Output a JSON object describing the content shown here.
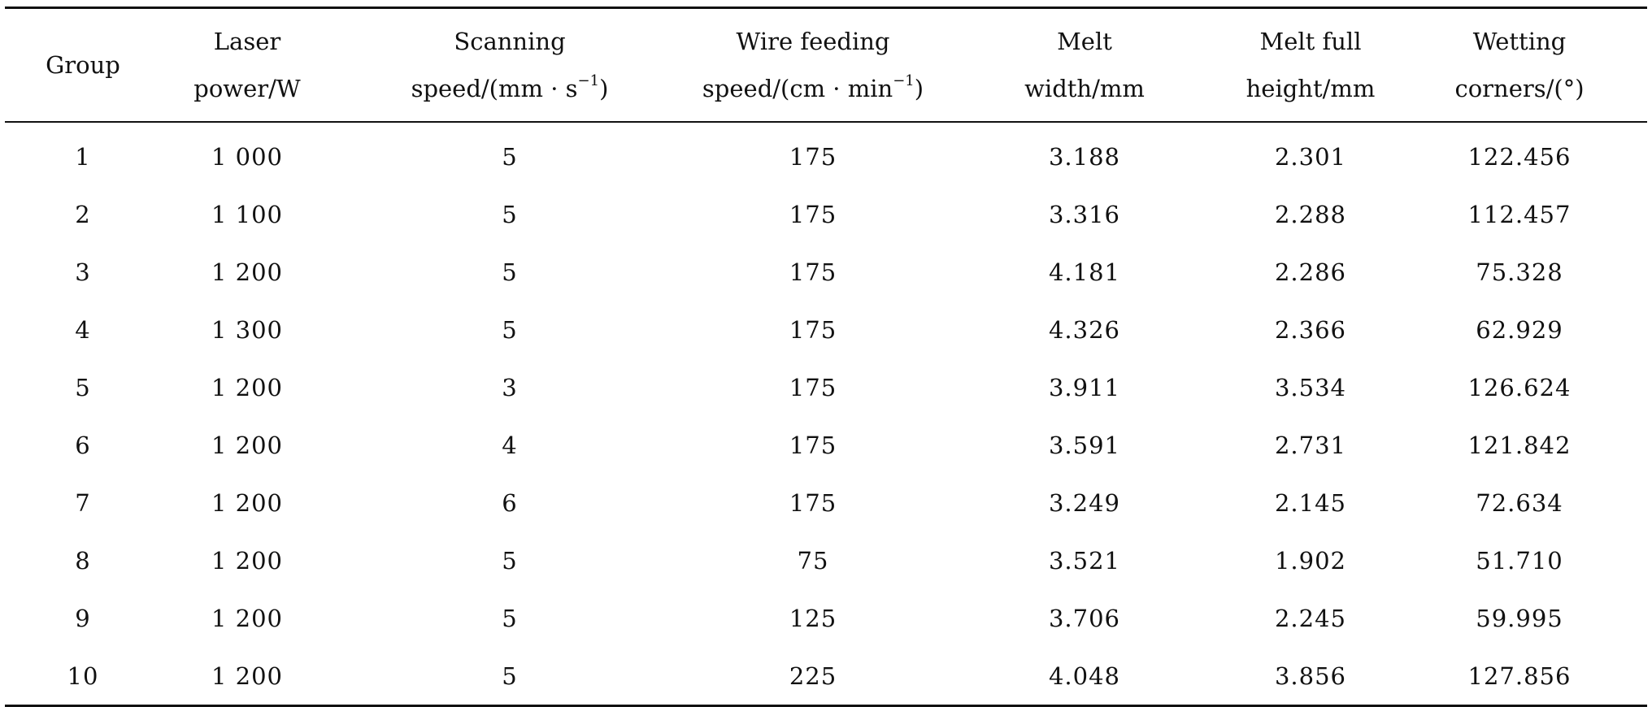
{
  "table": {
    "headers": [
      {
        "line1": "Group",
        "line2": ""
      },
      {
        "line1": "Laser",
        "line2": "power/W"
      },
      {
        "line1": "Scanning",
        "line2": "speed/(mm · s",
        "sup": "−1",
        "tail": ")"
      },
      {
        "line1": "Wire feeding",
        "line2": "speed/(cm · min",
        "sup": "−1",
        "tail": ")"
      },
      {
        "line1": "Melt",
        "line2": "width/mm"
      },
      {
        "line1": "Melt full",
        "line2": "height/mm"
      },
      {
        "line1": "Wetting",
        "line2": "corners/(°)"
      }
    ],
    "rows": [
      [
        "1",
        "1 000",
        "5",
        "175",
        "3.188",
        "2.301",
        "122.456"
      ],
      [
        "2",
        "1 100",
        "5",
        "175",
        "3.316",
        "2.288",
        "112.457"
      ],
      [
        "3",
        "1 200",
        "5",
        "175",
        "4.181",
        "2.286",
        "75.328"
      ],
      [
        "4",
        "1 300",
        "5",
        "175",
        "4.326",
        "2.366",
        "62.929"
      ],
      [
        "5",
        "1 200",
        "3",
        "175",
        "3.911",
        "3.534",
        "126.624"
      ],
      [
        "6",
        "1 200",
        "4",
        "175",
        "3.591",
        "2.731",
        "121.842"
      ],
      [
        "7",
        "1 200",
        "6",
        "175",
        "3.249",
        "2.145",
        "72.634"
      ],
      [
        "8",
        "1 200",
        "5",
        "75",
        "3.521",
        "1.902",
        "51.710"
      ],
      [
        "9",
        "1 200",
        "5",
        "125",
        "3.706",
        "2.245",
        "59.995"
      ],
      [
        "10",
        "1 200",
        "5",
        "225",
        "4.048",
        "3.856",
        "127.856"
      ]
    ]
  }
}
